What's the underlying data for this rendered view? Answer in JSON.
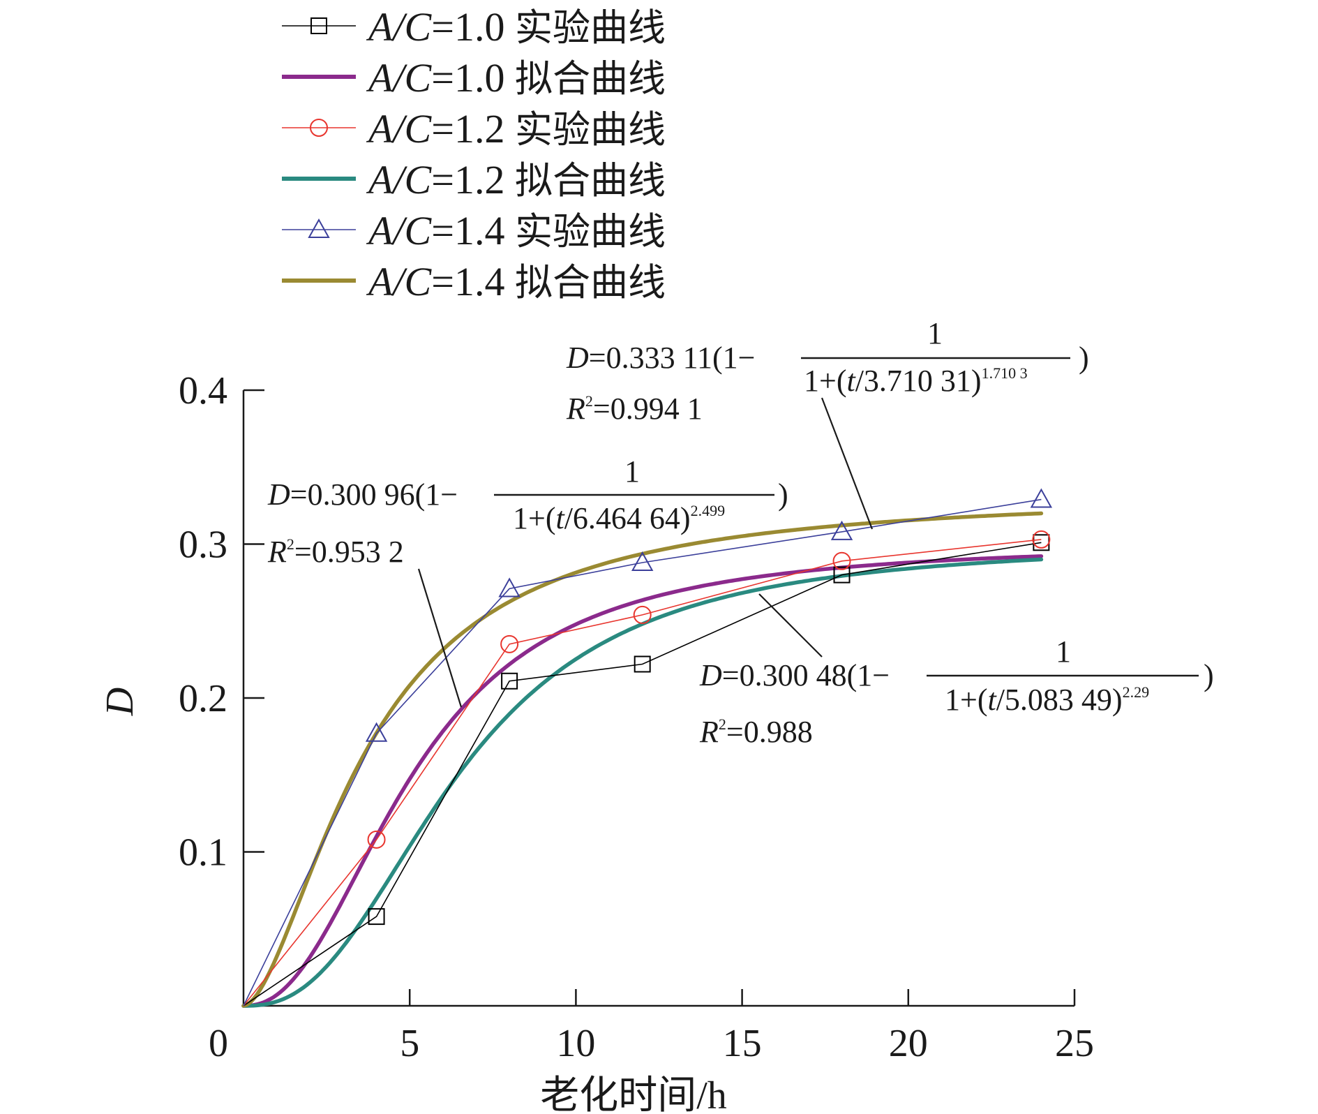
{
  "chart_data": {
    "type": "line",
    "xlabel": "老化时间/h",
    "ylabel": "D",
    "xlim": [
      0,
      25
    ],
    "ylim": [
      0,
      0.4
    ],
    "x_ticks": [
      "0",
      "5",
      "10",
      "15",
      "20",
      "25"
    ],
    "y_ticks": [
      "0.1",
      "0.2",
      "0.3",
      "0.4"
    ],
    "grid": false,
    "legend_position": "top-left, above plot",
    "legend": [
      {
        "label_prefix": "A/C",
        "label_value": "=1.0",
        "label_suffix": "实验曲线",
        "color": "#000000",
        "marker": "square",
        "style": "experimental"
      },
      {
        "label_prefix": "A/C",
        "label_value": "=1.0",
        "label_suffix": "拟合曲线",
        "color": "#8b2a8c",
        "marker": "none",
        "style": "fit"
      },
      {
        "label_prefix": "A/C",
        "label_value": "=1.2",
        "label_suffix": "实验曲线",
        "color": "#e8352e",
        "marker": "circle",
        "style": "experimental"
      },
      {
        "label_prefix": "A/C",
        "label_value": "=1.2",
        "label_suffix": "拟合曲线",
        "color": "#2a8a80",
        "marker": "none",
        "style": "fit"
      },
      {
        "label_prefix": "A/C",
        "label_value": "=1.4",
        "label_suffix": "实验曲线",
        "color": "#3b3f9a",
        "marker": "triangle",
        "style": "experimental"
      },
      {
        "label_prefix": "A/C",
        "label_value": "=1.4",
        "label_suffix": "拟合曲线",
        "color": "#9a8a32",
        "marker": "none",
        "style": "fit"
      }
    ],
    "series": [
      {
        "name": "A/C=1.0 实验曲线",
        "marker": "square",
        "color": "#000000",
        "x": [
          0,
          4,
          8,
          12,
          18,
          24
        ],
        "y": [
          0,
          0.058,
          0.211,
          0.222,
          0.28,
          0.301
        ]
      },
      {
        "name": "A/C=1.2 实验曲线",
        "marker": "circle",
        "color": "#e8352e",
        "x": [
          0,
          4,
          8,
          12,
          18,
          24
        ],
        "y": [
          0,
          0.108,
          0.235,
          0.254,
          0.289,
          0.303
        ]
      },
      {
        "name": "A/C=1.4 实验曲线",
        "marker": "triangle",
        "color": "#3b3f9a",
        "x": [
          0,
          4,
          8,
          12,
          18,
          24
        ],
        "y": [
          0,
          0.177,
          0.271,
          0.288,
          0.308,
          0.329
        ]
      },
      {
        "name": "A/C=1.0 拟合曲线",
        "color": "#8b2a8c",
        "fit": {
          "a": 0.30048,
          "b": 5.08349,
          "n": 2.29
        }
      },
      {
        "name": "A/C=1.2 拟合曲线",
        "color": "#2a8a80",
        "fit": {
          "a": 0.30096,
          "b": 6.46464,
          "n": 2.499
        }
      },
      {
        "name": "A/C=1.4 拟合曲线",
        "color": "#9a8a32",
        "fit": {
          "a": 0.33311,
          "b": 3.71031,
          "n": 1.7103
        }
      }
    ],
    "annotations": [
      {
        "id": "eq14",
        "prefix": "D",
        "coef": "=0.333 11(1−",
        "numerator": "1",
        "den_base": "1+(",
        "den_var": "t",
        "den_rest": "/3.710 31)",
        "exponent": "1.710 3",
        "close": ")",
        "r2_label": "R",
        "r2_sup": "2",
        "r2_value": "=0.994 1"
      },
      {
        "id": "eq12",
        "prefix": "D",
        "coef": "=0.300 96(1−",
        "numerator": "1",
        "den_base": "1+(",
        "den_var": "t",
        "den_rest": "/6.464 64)",
        "exponent": "2.499",
        "close": ")",
        "r2_label": "R",
        "r2_sup": "2",
        "r2_value": "=0.953 2"
      },
      {
        "id": "eq10",
        "prefix": "D",
        "coef": "=0.300 48(1−",
        "numerator": "1",
        "den_base": "1+(",
        "den_var": "t",
        "den_rest": "/5.083 49)",
        "exponent": "2.29",
        "close": ")",
        "r2_label": "R",
        "r2_sup": "2",
        "r2_value": "=0.988"
      }
    ]
  }
}
